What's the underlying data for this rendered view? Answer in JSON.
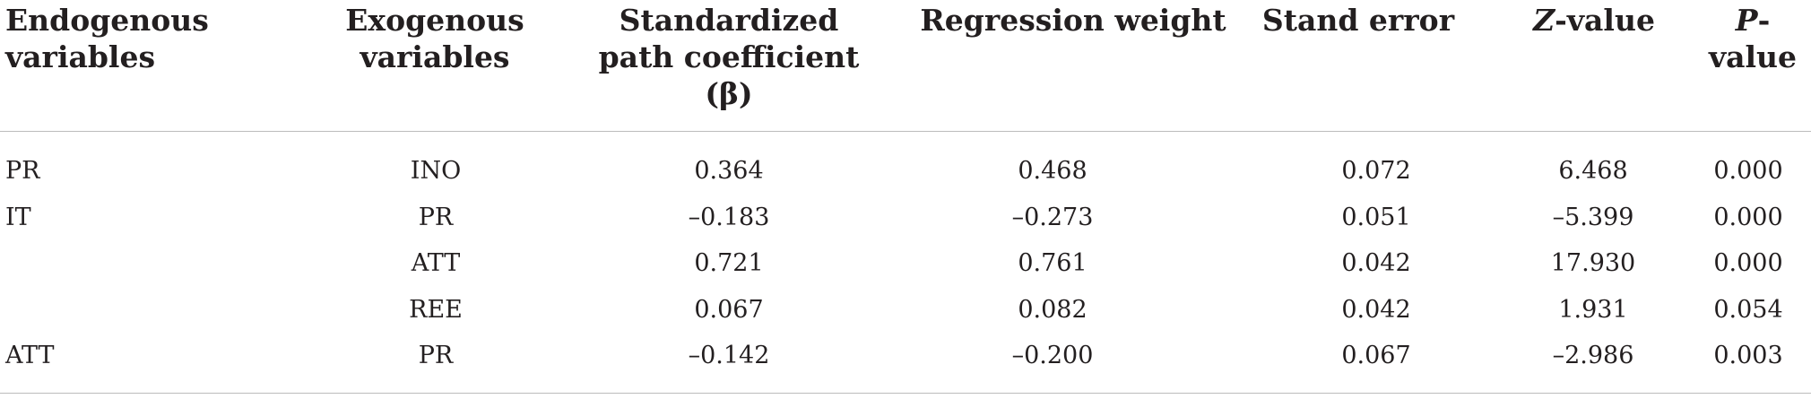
{
  "table": {
    "headers": [
      {
        "lines": [
          "Endogenous",
          "variables"
        ]
      },
      {
        "lines": [
          "Exogenous",
          "variables"
        ]
      },
      {
        "lines": [
          "Standardized",
          "path coefficient",
          "(β)"
        ]
      },
      {
        "lines": [
          "Regression weight"
        ]
      },
      {
        "lines": [
          "Stand error"
        ]
      },
      {
        "prefix": "Z",
        "suffix": "-value"
      },
      {
        "prefix": "P",
        "suffix": "-value"
      }
    ],
    "rows": [
      {
        "endogenous": "PR",
        "exogenous": "INO",
        "beta": "0.364",
        "weight": "0.468",
        "se": "0.072",
        "z": "6.468",
        "p": "0.000"
      },
      {
        "endogenous": "IT",
        "exogenous": "PR",
        "beta": "–0.183",
        "weight": "–0.273",
        "se": "0.051",
        "z": "–5.399",
        "p": "0.000"
      },
      {
        "endogenous": "",
        "exogenous": "ATT",
        "beta": "0.721",
        "weight": "0.761",
        "se": "0.042",
        "z": "17.930",
        "p": "0.000"
      },
      {
        "endogenous": "",
        "exogenous": "REE",
        "beta": "0.067",
        "weight": "0.082",
        "se": "0.042",
        "z": "1.931",
        "p": "0.054"
      },
      {
        "endogenous": "ATT",
        "exogenous": "PR",
        "beta": "–0.142",
        "weight": "–0.200",
        "se": "0.067",
        "z": "–2.986",
        "p": "0.003"
      }
    ]
  }
}
